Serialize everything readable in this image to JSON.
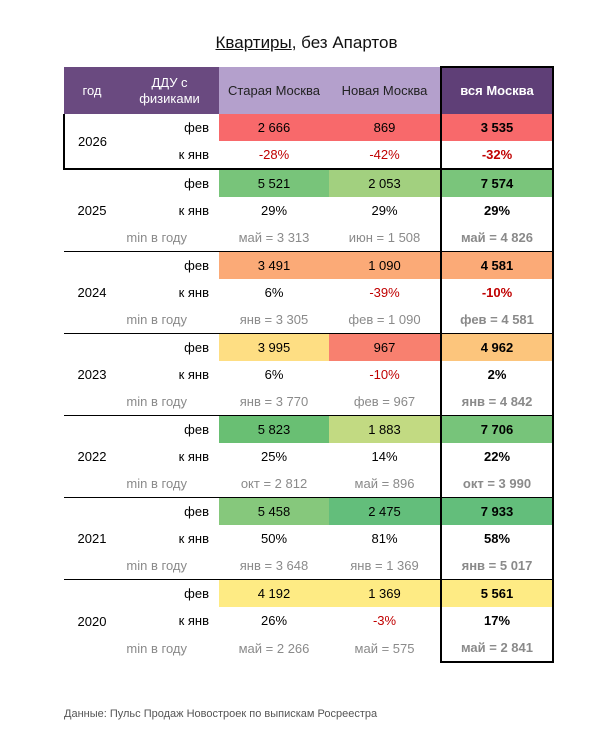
{
  "title": {
    "main": "Квартиры",
    "rest": ", без Апартов"
  },
  "headers": {
    "year": "год",
    "ddu": "ДДУ с физиками",
    "old": "Старая Москва",
    "new": "Новая Москва",
    "all": "вся Москва"
  },
  "labels": {
    "feb": "фев",
    "jan": "к янв",
    "min": "min в году"
  },
  "colors": {
    "header": "#6a4a80",
    "header_light": "#b4a0cc"
  },
  "years": [
    {
      "year": "2026",
      "feb": {
        "old": "2 666",
        "new": "869",
        "all": "3 535",
        "old_color": "#f8696b",
        "new_color": "#f8696b",
        "all_color": "#f8696b"
      },
      "jan": {
        "old": "-28%",
        "new": "-42%",
        "all": "-32%",
        "old_neg": true,
        "new_neg": true,
        "all_neg": true
      },
      "min": null
    },
    {
      "year": "2025",
      "feb": {
        "old": "5 521",
        "new": "2 053",
        "all": "7 574",
        "old_color": "#78c47a",
        "new_color": "#a2d07f",
        "all_color": "#7ac57b"
      },
      "jan": {
        "old": "29%",
        "new": "29%",
        "all": "29%",
        "old_neg": false,
        "new_neg": false,
        "all_neg": false
      },
      "min": {
        "old": "май = 3 313",
        "new": "июн = 1 508",
        "all": "май = 4 826"
      }
    },
    {
      "year": "2024",
      "feb": {
        "old": "3 491",
        "new": "1 090",
        "all": "4 581",
        "old_color": "#fbaa77",
        "new_color": "#fbaa77",
        "all_color": "#fbaa77"
      },
      "jan": {
        "old": "6%",
        "new": "-39%",
        "all": "-10%",
        "old_neg": false,
        "new_neg": true,
        "all_neg": true
      },
      "min": {
        "old": "янв = 3 305",
        "new": "фев = 1 090",
        "all": "фев = 4 581"
      }
    },
    {
      "year": "2023",
      "feb": {
        "old": "3 995",
        "new": "967",
        "all": "4 962",
        "old_color": "#fede83",
        "new_color": "#f8806f",
        "all_color": "#fcc57c"
      },
      "jan": {
        "old": "6%",
        "new": "-10%",
        "all": "2%",
        "old_neg": false,
        "new_neg": true,
        "all_neg": false
      },
      "min": {
        "old": "янв = 3 770",
        "new": "фев = 967",
        "all": "янв = 4 842"
      }
    },
    {
      "year": "2022",
      "feb": {
        "old": "5 823",
        "new": "1 883",
        "all": "7 706",
        "old_color": "#69bf73",
        "new_color": "#c2da82",
        "all_color": "#77c47a"
      },
      "jan": {
        "old": "25%",
        "new": "14%",
        "all": "22%",
        "old_neg": false,
        "new_neg": false,
        "all_neg": false
      },
      "min": {
        "old": "окт = 2 812",
        "new": "май = 896",
        "all": "окт = 3 990"
      }
    },
    {
      "year": "2021",
      "feb": {
        "old": "5 458",
        "new": "2 475",
        "all": "7 933",
        "old_color": "#86c87c",
        "new_color": "#63be7b",
        "all_color": "#63be7b"
      },
      "jan": {
        "old": "50%",
        "new": "81%",
        "all": "58%",
        "old_neg": false,
        "new_neg": false,
        "all_neg": false
      },
      "min": {
        "old": "янв = 3 648",
        "new": "янв = 1 369",
        "all": "янв = 5 017"
      }
    },
    {
      "year": "2020",
      "feb": {
        "old": "4 192",
        "new": "1 369",
        "all": "5 561",
        "old_color": "#feeb84",
        "new_color": "#feeb84",
        "all_color": "#feeb84"
      },
      "jan": {
        "old": "26%",
        "new": "-3%",
        "all": "17%",
        "old_neg": false,
        "new_neg": true,
        "all_neg": false
      },
      "min": {
        "old": "май = 2 266",
        "new": "май = 575",
        "all": "май = 2 841"
      }
    }
  ],
  "footer": "Данные: Пульс Продаж Новостроек по выпискам Росреестра"
}
